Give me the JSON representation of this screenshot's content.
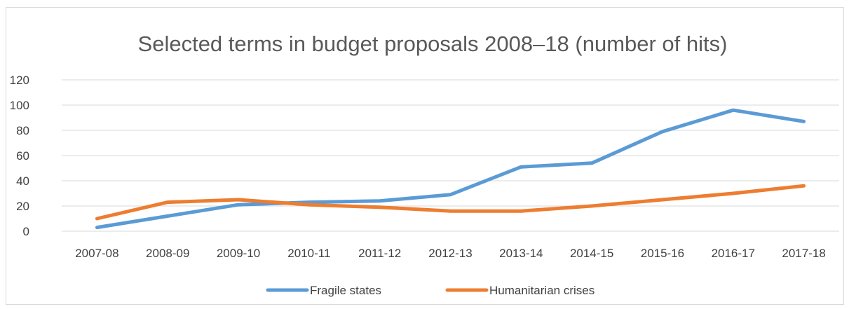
{
  "chart_data": {
    "type": "line",
    "title": "Selected terms in budget proposals 2008–18 (number of hits)",
    "xlabel": "",
    "ylabel": "",
    "categories": [
      "2007-08",
      "2008-09",
      "2009-10",
      "2010-11",
      "2011-12",
      "2012-13",
      "2013-14",
      "2014-15",
      "2015-16",
      "2016-17",
      "2017-18"
    ],
    "ylim": [
      0,
      120
    ],
    "yticks": [
      0,
      20,
      40,
      60,
      80,
      100,
      120
    ],
    "grid": true,
    "legend_position": "bottom",
    "series": [
      {
        "name": "Fragile states",
        "color": "#5b9bd5",
        "values": [
          3,
          12,
          21,
          23,
          24,
          29,
          51,
          54,
          79,
          96,
          87
        ]
      },
      {
        "name": "Humanitarian crises",
        "color": "#ed7d31",
        "values": [
          10,
          23,
          25,
          21,
          19,
          16,
          16,
          20,
          25,
          30,
          36
        ]
      }
    ]
  }
}
